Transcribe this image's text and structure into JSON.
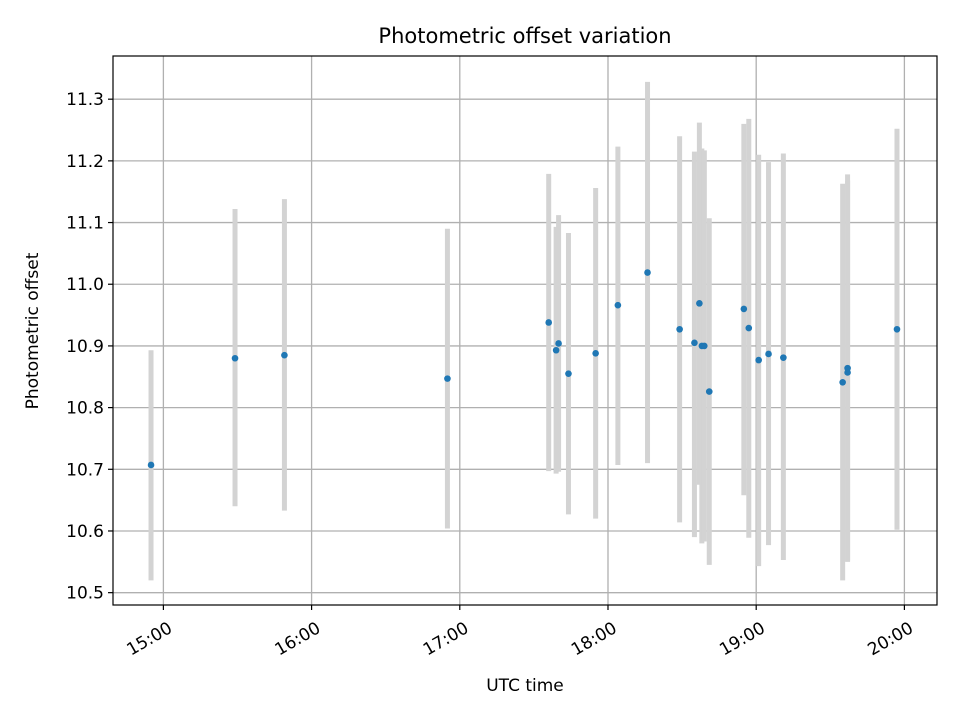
{
  "chart_data": {
    "type": "scatter",
    "title": "Photometric offset variation",
    "xlabel": "UTC time",
    "ylabel": "Photometric offset",
    "x_tick_labels": [
      "15:00",
      "16:00",
      "17:00",
      "18:00",
      "19:00",
      "20:00"
    ],
    "y_tick_labels": [
      "10.5",
      "10.6",
      "10.7",
      "10.8",
      "10.9",
      "11.0",
      "11.1",
      "11.2",
      "11.3"
    ],
    "x_ticks_hours": [
      15,
      16,
      17,
      18,
      19,
      20
    ],
    "y_ticks": [
      10.5,
      10.6,
      10.7,
      10.8,
      10.9,
      11.0,
      11.1,
      11.2,
      11.3
    ],
    "xlim_hours": [
      14.66,
      20.22
    ],
    "ylim": [
      10.48,
      11.37
    ],
    "grid": true,
    "point_color": "#1f77b4",
    "errorbar_color": "#d3d3d3",
    "points": [
      {
        "time": "14:55",
        "y": 10.707,
        "lo": 10.52,
        "hi": 10.893
      },
      {
        "time": "15:29",
        "y": 10.88,
        "lo": 10.64,
        "hi": 11.122
      },
      {
        "time": "15:49",
        "y": 10.885,
        "lo": 10.633,
        "hi": 11.138
      },
      {
        "time": "16:55",
        "y": 10.847,
        "lo": 10.604,
        "hi": 11.09
      },
      {
        "time": "17:36",
        "y": 10.938,
        "lo": 10.697,
        "hi": 11.179
      },
      {
        "time": "17:39",
        "y": 10.893,
        "lo": 10.693,
        "hi": 11.093
      },
      {
        "time": "17:40",
        "y": 10.904,
        "lo": 10.696,
        "hi": 11.112
      },
      {
        "time": "17:44",
        "y": 10.855,
        "lo": 10.627,
        "hi": 11.083
      },
      {
        "time": "17:55",
        "y": 10.888,
        "lo": 10.62,
        "hi": 11.156
      },
      {
        "time": "18:04",
        "y": 10.966,
        "lo": 10.707,
        "hi": 11.223
      },
      {
        "time": "18:16",
        "y": 11.019,
        "lo": 10.71,
        "hi": 11.328
      },
      {
        "time": "18:29",
        "y": 10.927,
        "lo": 10.614,
        "hi": 11.24
      },
      {
        "time": "18:35",
        "y": 10.905,
        "lo": 10.59,
        "hi": 11.215
      },
      {
        "time": "18:37",
        "y": 10.969,
        "lo": 10.675,
        "hi": 11.262
      },
      {
        "time": "18:38",
        "y": 10.9,
        "lo": 10.58,
        "hi": 11.22
      },
      {
        "time": "18:39",
        "y": 10.9,
        "lo": 10.583,
        "hi": 11.217
      },
      {
        "time": "18:41",
        "y": 10.826,
        "lo": 10.545,
        "hi": 11.107
      },
      {
        "time": "18:55",
        "y": 10.96,
        "lo": 10.658,
        "hi": 11.26
      },
      {
        "time": "18:57",
        "y": 10.929,
        "lo": 10.589,
        "hi": 11.268
      },
      {
        "time": "19:01",
        "y": 10.877,
        "lo": 10.543,
        "hi": 11.21
      },
      {
        "time": "19:05",
        "y": 10.887,
        "lo": 10.577,
        "hi": 11.198
      },
      {
        "time": "19:11",
        "y": 10.881,
        "lo": 10.553,
        "hi": 11.212
      },
      {
        "time": "19:35",
        "y": 10.841,
        "lo": 10.52,
        "hi": 11.163
      },
      {
        "time": "19:37",
        "y": 10.857,
        "lo": 10.552,
        "hi": 11.168
      },
      {
        "time": "19:37",
        "y": 10.864,
        "lo": 10.55,
        "hi": 11.178
      },
      {
        "time": "19:57",
        "y": 10.927,
        "lo": 10.602,
        "hi": 11.252
      }
    ]
  }
}
